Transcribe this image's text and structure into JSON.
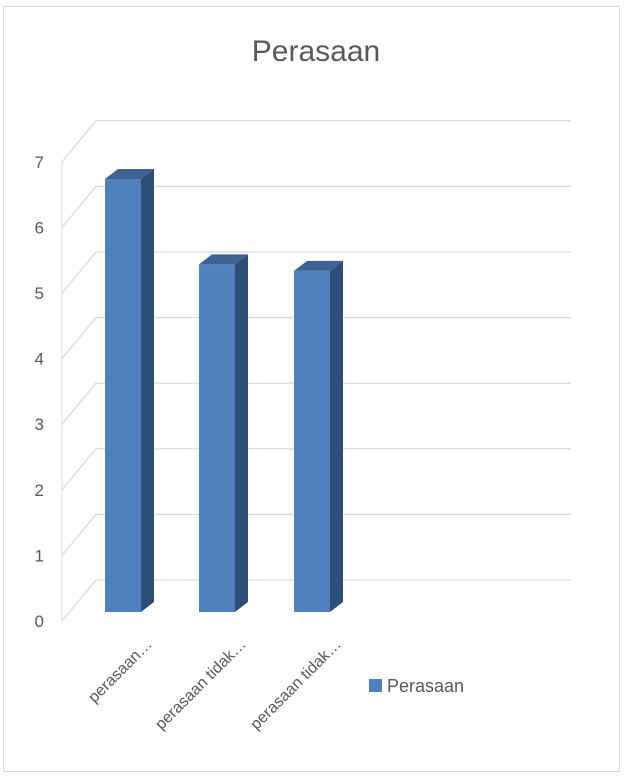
{
  "chart_data": {
    "type": "bar",
    "title": "Perasaan",
    "categories": [
      "perasaan…",
      "perasaan tidak…",
      "perasaan tidak…"
    ],
    "series": [
      {
        "name": "Perasaan",
        "values": [
          6.6,
          5.3,
          5.2
        ],
        "color": "#4f81bd"
      }
    ],
    "ylim": [
      0,
      7
    ],
    "y_ticks": [
      "0",
      "1",
      "2",
      "3",
      "4",
      "5",
      "6",
      "7"
    ],
    "grid": true,
    "legend_position": "right",
    "style": "3d-column"
  }
}
